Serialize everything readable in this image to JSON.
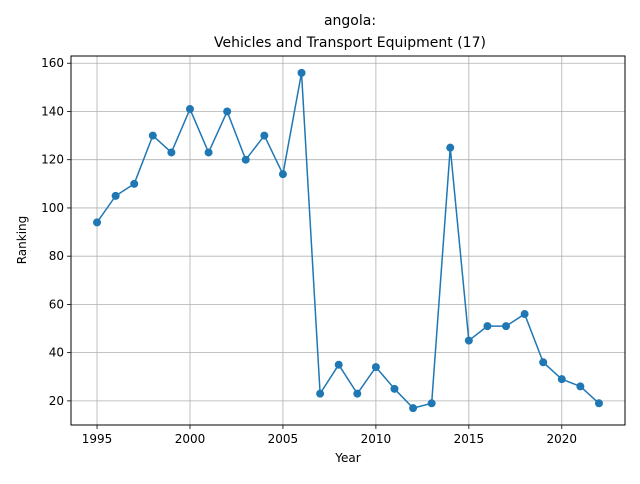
{
  "chart_data": {
    "type": "line",
    "title_line1": "angola:",
    "title_line2": "Vehicles and Transport Equipment (17)",
    "xlabel": "Year",
    "ylabel": "Ranking",
    "xlim": [
      1993.6,
      2023.4
    ],
    "ylim": [
      10,
      163
    ],
    "xticks": [
      1995,
      2000,
      2005,
      2010,
      2015,
      2020
    ],
    "yticks": [
      20,
      40,
      60,
      80,
      100,
      120,
      140,
      160
    ],
    "grid": true,
    "marker": "circle",
    "line_color": "#1f77b4",
    "series": [
      {
        "x": [
          1995,
          1996,
          1997,
          1998,
          1999,
          2000,
          2001,
          2002,
          2003,
          2004,
          2005,
          2006,
          2007,
          2008,
          2009,
          2010,
          2011,
          2012,
          2013,
          2014,
          2015,
          2016,
          2017,
          2018,
          2019,
          2020,
          2021,
          2022
        ],
        "values": [
          94,
          105,
          110,
          130,
          123,
          141,
          123,
          140,
          120,
          130,
          114,
          156,
          23,
          35,
          23,
          34,
          25,
          17,
          19,
          125,
          45,
          51,
          51,
          56,
          36,
          29,
          26,
          19
        ]
      }
    ]
  }
}
